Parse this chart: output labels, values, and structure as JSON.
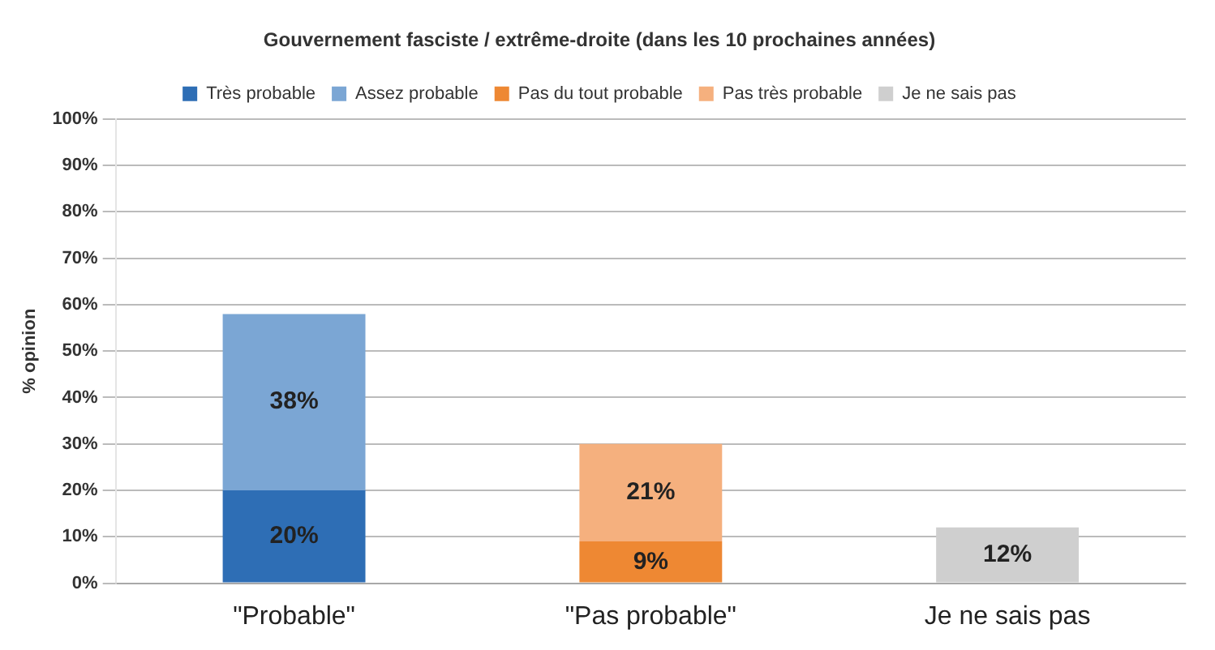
{
  "chart_data": {
    "type": "bar",
    "title": "Gouvernement fasciste / extrême-droite (dans les 10 prochaines années)",
    "ylabel": "% opinion",
    "categories": [
      "\"Probable\"",
      "\"Pas probable\"",
      "Je ne sais pas"
    ],
    "stacked": true,
    "legend": "top",
    "grid": "y",
    "ylim": [
      0,
      100
    ],
    "yticks": [
      {
        "value": 0,
        "label": "0%"
      },
      {
        "value": 10,
        "label": "10%"
      },
      {
        "value": 20,
        "label": "20%"
      },
      {
        "value": 30,
        "label": "30%"
      },
      {
        "value": 40,
        "label": "40%"
      },
      {
        "value": 50,
        "label": "50%"
      },
      {
        "value": 60,
        "label": "60%"
      },
      {
        "value": 70,
        "label": "70%"
      },
      {
        "value": 80,
        "label": "80%"
      },
      {
        "value": 90,
        "label": "90%"
      },
      {
        "value": 100,
        "label": "100%"
      }
    ],
    "series": [
      {
        "name": "Très probable",
        "color": "#2e6eb5",
        "values": [
          20,
          null,
          null
        ],
        "value_labels": [
          "20%",
          null,
          null
        ]
      },
      {
        "name": "Assez probable",
        "color": "#7ba6d4",
        "values": [
          38,
          null,
          null
        ],
        "value_labels": [
          "38%",
          null,
          null
        ]
      },
      {
        "name": "Pas du tout probable",
        "color": "#ee8833",
        "values": [
          null,
          9,
          null
        ],
        "value_labels": [
          null,
          "9%",
          null
        ]
      },
      {
        "name": "Pas très probable",
        "color": "#f5b07e",
        "values": [
          null,
          21,
          null
        ],
        "value_labels": [
          null,
          "21%",
          null
        ]
      },
      {
        "name": "Je ne sais pas",
        "color": "#cfcfcf",
        "values": [
          null,
          null,
          12
        ],
        "value_labels": [
          null,
          null,
          "12%"
        ]
      }
    ]
  }
}
